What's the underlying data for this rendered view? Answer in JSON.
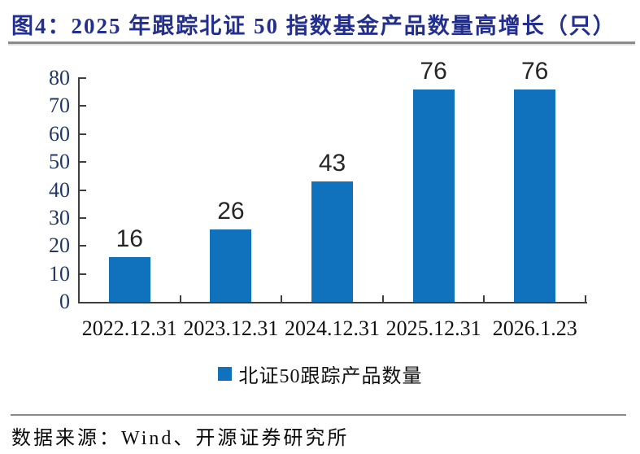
{
  "figure": {
    "title": "图4：2025 年跟踪北证 50 指数基金产品数量高增长（只）",
    "source": "数据来源：Wind、开源证券研究所"
  },
  "chart_data": {
    "type": "bar",
    "title": "图4：2025 年跟踪北证 50 指数基金产品数量高增长（只）",
    "categories": [
      "2022.12.31",
      "2023.12.31",
      "2024.12.31",
      "2025.12.31",
      "2026.1.23"
    ],
    "series": [
      {
        "name": "北证50跟踪产品数量",
        "values": [
          16,
          26,
          43,
          76,
          76
        ]
      }
    ],
    "data_labels": [
      "16",
      "26",
      "43",
      "76",
      "76"
    ],
    "ylim": [
      0,
      80
    ],
    "yticks": [
      0,
      10,
      20,
      30,
      40,
      50,
      60,
      70,
      80
    ],
    "xlabel": "",
    "ylabel": "",
    "grid": false,
    "legend_position": "bottom",
    "bar_color": "#1072BC"
  },
  "legend": {
    "marker": "square-icon",
    "label": "北证50跟踪产品数量",
    "marker_color": "#1072BC"
  },
  "colors": {
    "bar": "#1072BC",
    "title": "#232F8F",
    "axis": "#3f3f3f",
    "y_axis_label": "#203864",
    "x_axis_label": "#111111",
    "divider": "#8a8a8a"
  }
}
